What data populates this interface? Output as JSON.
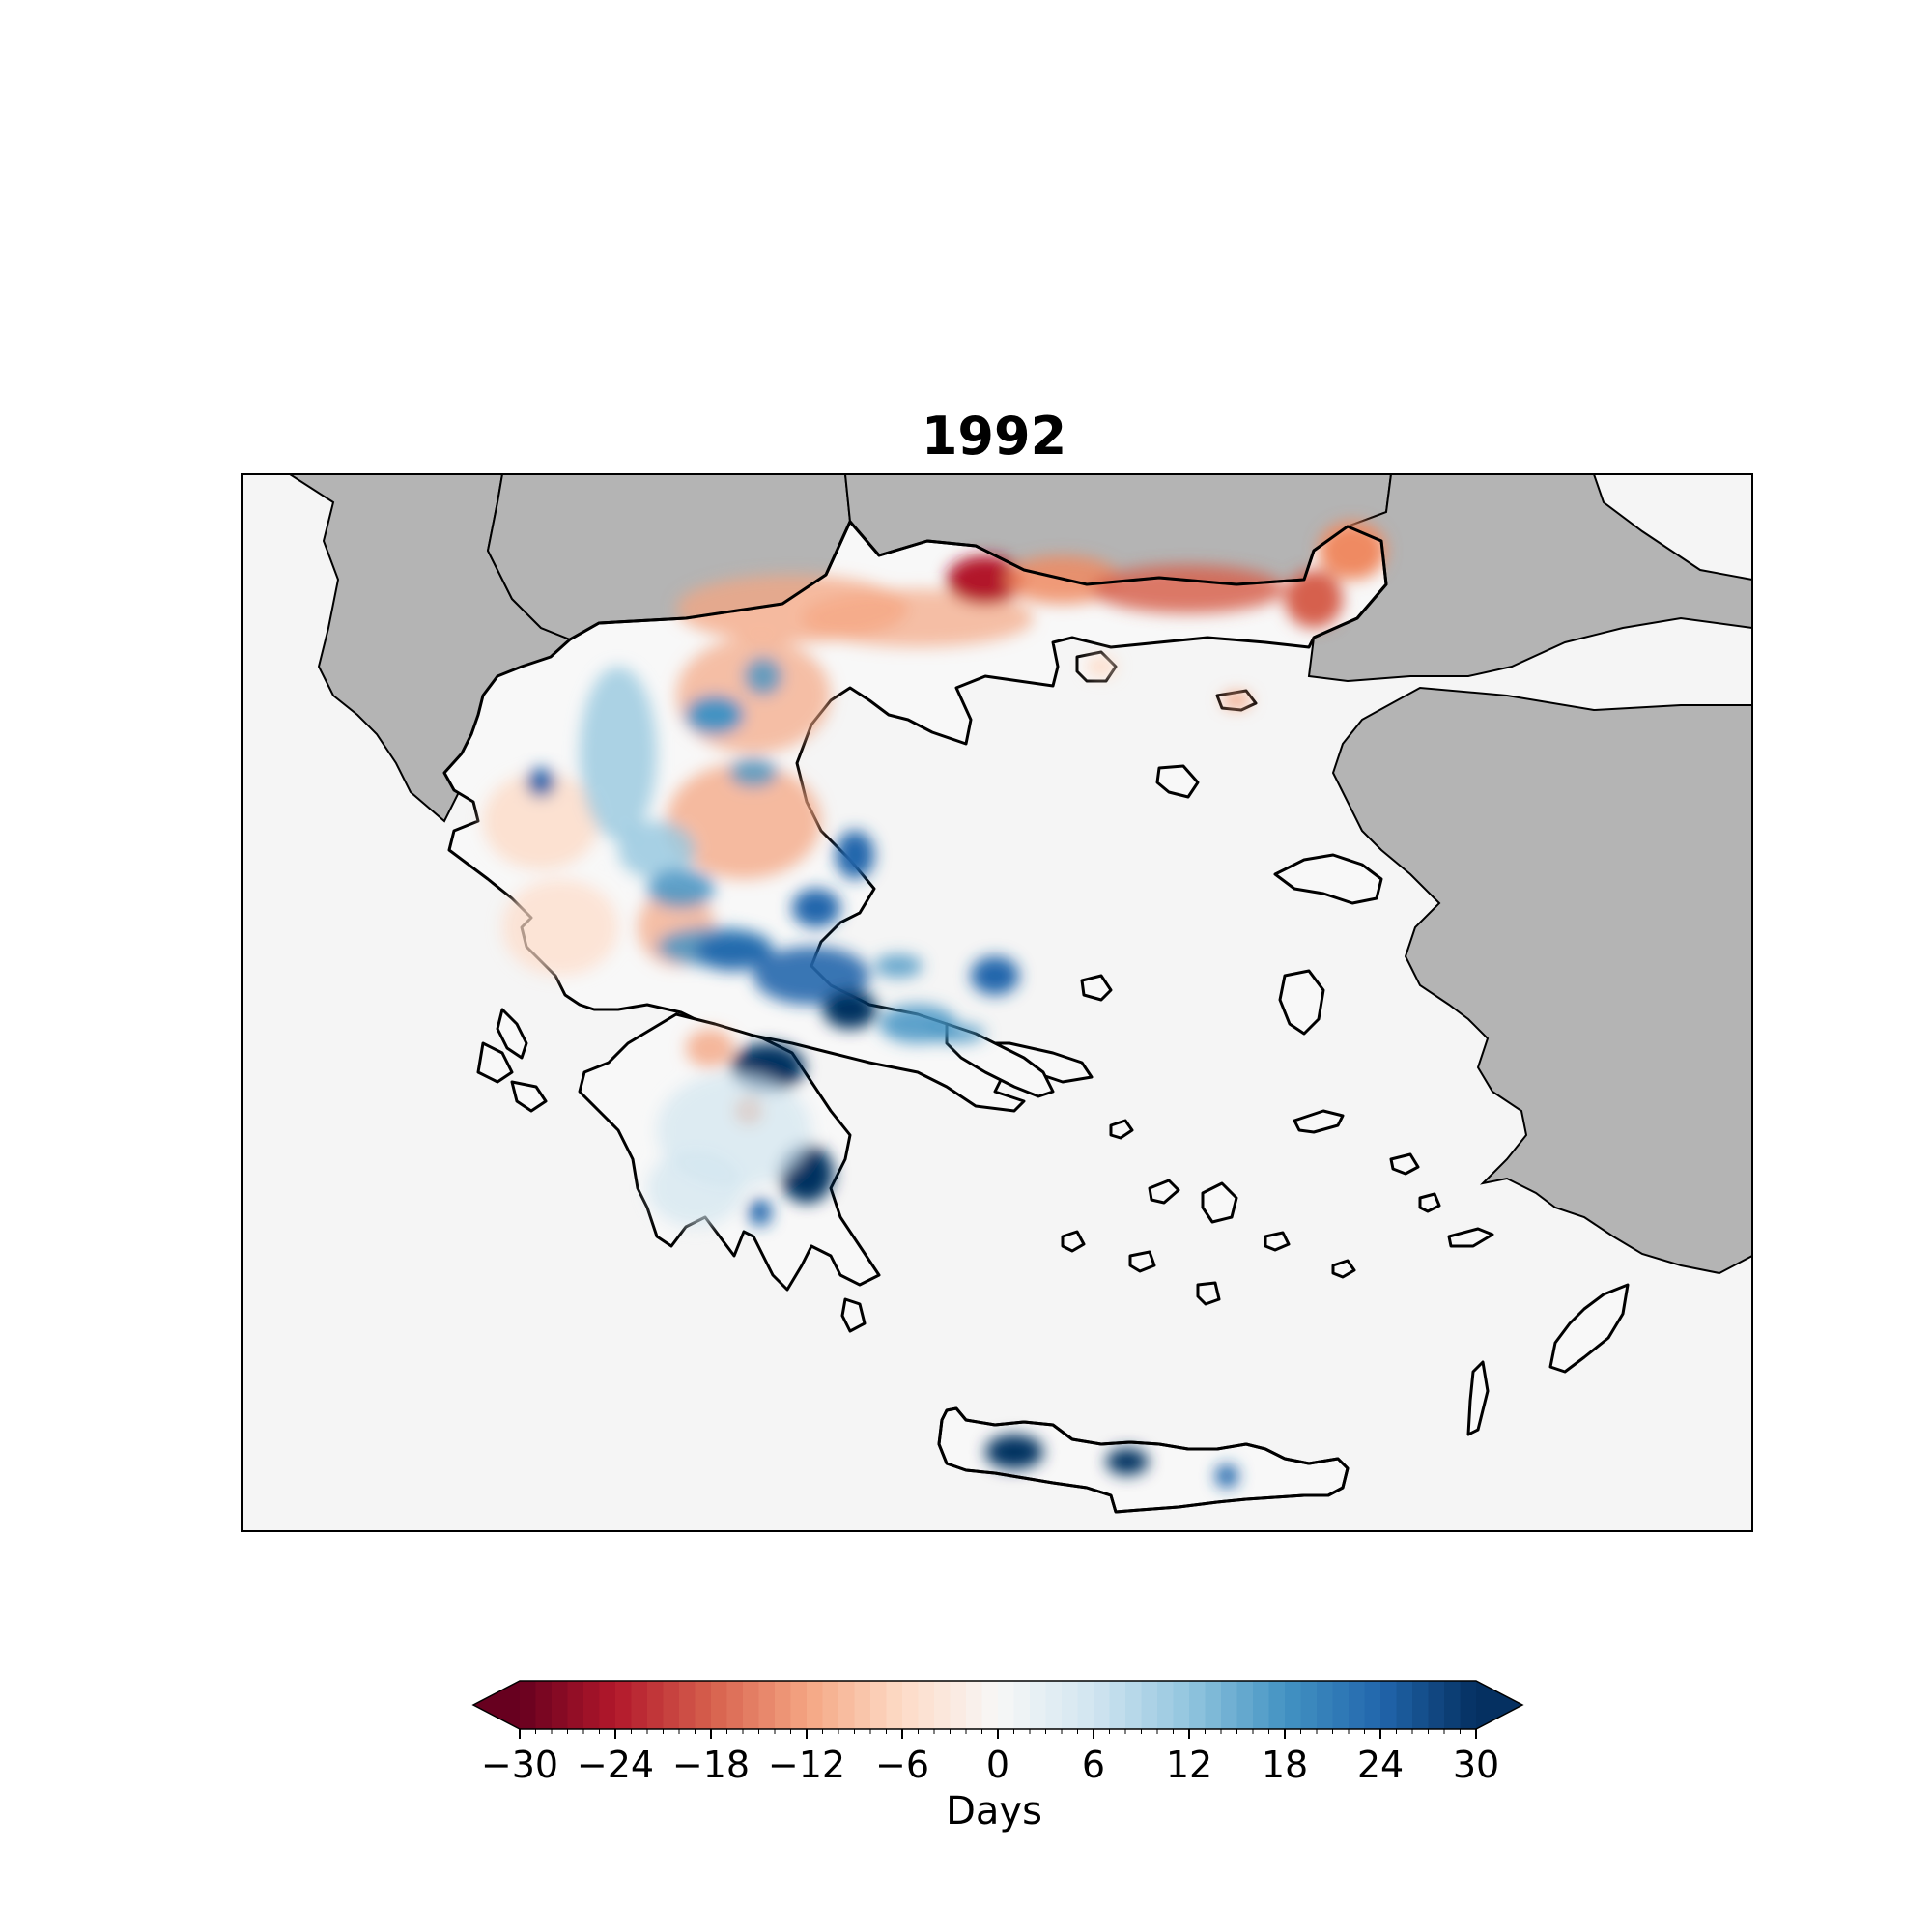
{
  "map": {
    "title": "1992",
    "background_color": "#f5f5f5",
    "neighbor_land_color": "#b4b4b4",
    "coastline_color": "#000000"
  },
  "colorbar": {
    "label": "Days",
    "colormap": "RdBu",
    "min": -30,
    "max": 30,
    "extend": "both",
    "ticks": [
      "−30",
      "−24",
      "−18",
      "−12",
      "−6",
      "0",
      "6",
      "12",
      "18",
      "24",
      "30"
    ],
    "colors": [
      "#67001f",
      "#b2182b",
      "#d6604d",
      "#f4a582",
      "#fddbc7",
      "#f7f7f7",
      "#d1e5f0",
      "#92c5de",
      "#4393c3",
      "#2166ac",
      "#053061"
    ]
  }
}
